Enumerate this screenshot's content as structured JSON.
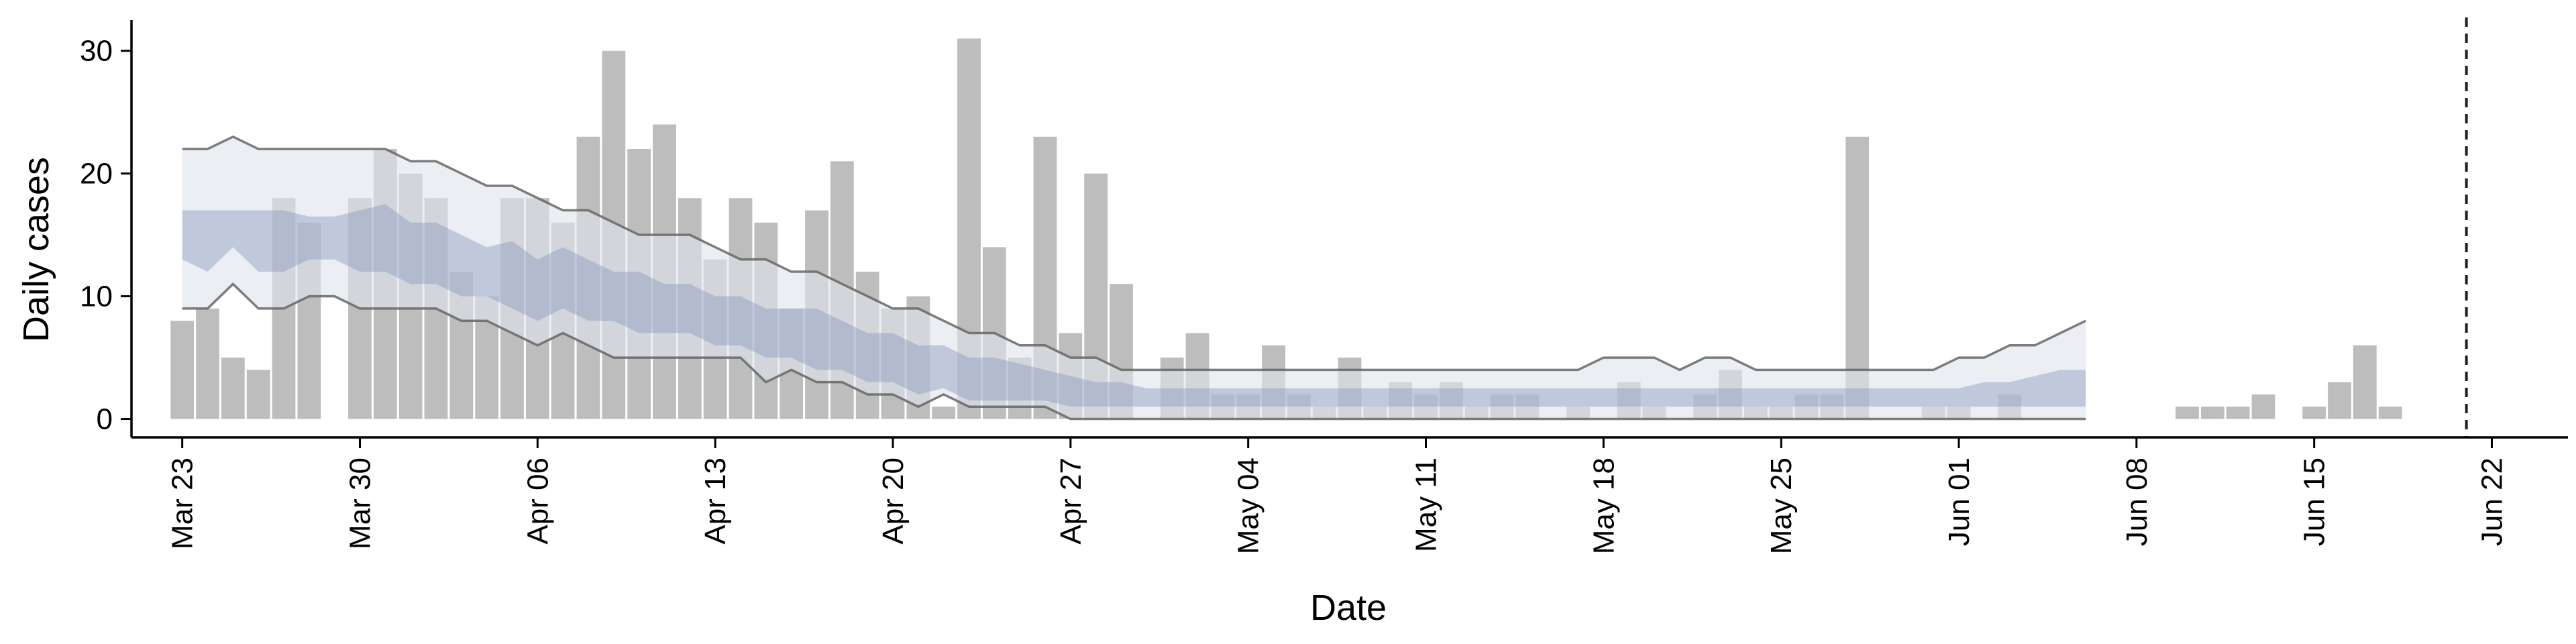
{
  "chart_data": {
    "type": "bar",
    "title": "",
    "xlabel": "Date",
    "ylabel": "Daily cases",
    "ylim": [
      -1.5,
      32.5
    ],
    "yticks": [
      0,
      10,
      20,
      30
    ],
    "xlim": [
      "2020-03-21",
      "2020-06-25"
    ],
    "xticks": [
      {
        "date": "2020-03-23",
        "label": "Mar 23"
      },
      {
        "date": "2020-03-30",
        "label": "Mar 30"
      },
      {
        "date": "2020-04-06",
        "label": "Apr 06"
      },
      {
        "date": "2020-04-13",
        "label": "Apr 13"
      },
      {
        "date": "2020-04-20",
        "label": "Apr 20"
      },
      {
        "date": "2020-04-27",
        "label": "Apr 27"
      },
      {
        "date": "2020-05-04",
        "label": "May 04"
      },
      {
        "date": "2020-05-11",
        "label": "May 11"
      },
      {
        "date": "2020-05-18",
        "label": "May 18"
      },
      {
        "date": "2020-05-25",
        "label": "May 25"
      },
      {
        "date": "2020-06-01",
        "label": "Jun 01"
      },
      {
        "date": "2020-06-08",
        "label": "Jun 08"
      },
      {
        "date": "2020-06-15",
        "label": "Jun 15"
      },
      {
        "date": "2020-06-22",
        "label": "Jun 22"
      }
    ],
    "vline_date": "2020-06-21",
    "bars_start_date": "2020-03-23",
    "bars_daily_cases": [
      8,
      9,
      5,
      4,
      18,
      16,
      0,
      18,
      22,
      20,
      18,
      12,
      10,
      18,
      18,
      16,
      23,
      30,
      22,
      24,
      18,
      13,
      18,
      16,
      9,
      17,
      21,
      12,
      9,
      10,
      1,
      31,
      14,
      5,
      23,
      7,
      20,
      11,
      0,
      5,
      7,
      2,
      2,
      6,
      2,
      1,
      5,
      1,
      3,
      2,
      3,
      1,
      2,
      2,
      0,
      1,
      0,
      3,
      1,
      0,
      2,
      4,
      1,
      1,
      2,
      2,
      23,
      0,
      0,
      1,
      1,
      0,
      2,
      0,
      0,
      0,
      0,
      0,
      0,
      1,
      1,
      1,
      2,
      0,
      1,
      3,
      6,
      1
    ],
    "model_start_date": "2020-03-23",
    "model_end_date": "2020-06-05",
    "outer_upper": [
      22,
      22,
      23,
      22,
      22,
      22,
      22,
      22,
      22,
      21,
      21,
      20,
      19,
      19,
      18,
      17,
      17,
      16,
      15,
      15,
      15,
      14,
      13,
      13,
      12,
      12,
      11,
      10,
      9,
      9,
      8,
      7,
      7,
      6,
      6,
      5,
      5,
      4,
      4,
      4,
      4,
      4,
      4,
      4,
      4,
      4,
      4,
      4,
      4,
      4,
      4,
      4,
      4,
      4,
      4,
      4,
      5,
      5,
      5,
      4,
      5,
      5,
      4,
      4,
      4,
      4,
      4,
      4,
      4,
      4,
      5,
      5,
      6,
      6,
      7,
      8
    ],
    "outer_lower": [
      9,
      9,
      11,
      9,
      9,
      10,
      10,
      9,
      9,
      9,
      9,
      8,
      8,
      7,
      6,
      7,
      6,
      5,
      5,
      5,
      5,
      5,
      5,
      3,
      4,
      3,
      3,
      2,
      2,
      1,
      2,
      1,
      1,
      1,
      1,
      0,
      0,
      0,
      0,
      0,
      0,
      0,
      0,
      0,
      0,
      0,
      0,
      0,
      0,
      0,
      0,
      0,
      0,
      0,
      0,
      0,
      0,
      0,
      0,
      0,
      0,
      0,
      0,
      0,
      0,
      0,
      0,
      0,
      0,
      0,
      0,
      0,
      0,
      0,
      0,
      0
    ],
    "inner_upper": [
      17,
      17,
      17,
      17,
      17,
      16.5,
      16.5,
      17,
      17.5,
      16,
      16,
      15,
      14,
      14.5,
      13,
      14,
      13,
      12,
      12,
      11,
      11,
      10,
      10,
      9,
      9,
      9,
      8,
      7,
      7,
      6,
      6,
      5,
      5,
      4.5,
      4,
      3.5,
      3,
      3,
      2.5,
      2.5,
      2.5,
      2.5,
      2.5,
      2.5,
      2.5,
      2.5,
      2.5,
      2.5,
      2.5,
      2.5,
      2.5,
      2.5,
      2.5,
      2.5,
      2.5,
      2.5,
      2.5,
      2.5,
      2.5,
      2.5,
      2.5,
      2.5,
      2.5,
      2.5,
      2.5,
      2.5,
      2.5,
      2.5,
      2.5,
      2.5,
      2.5,
      3,
      3,
      3.5,
      4,
      4
    ],
    "inner_lower": [
      13,
      12,
      14,
      12,
      12,
      13,
      13,
      12,
      12,
      11,
      11,
      10,
      10,
      9,
      8,
      9,
      8,
      8,
      7,
      7,
      7,
      6,
      6,
      5,
      5,
      4,
      4,
      3,
      3,
      2,
      2.5,
      1.5,
      1.5,
      1.5,
      1.5,
      1,
      1,
      1,
      1,
      1,
      1,
      1,
      1,
      1,
      1,
      1,
      1,
      1,
      1,
      1,
      1,
      1,
      1,
      1,
      1,
      1,
      1,
      1,
      1,
      1,
      1,
      1,
      1,
      1,
      1,
      1,
      1,
      1,
      1,
      1,
      1,
      1,
      1,
      1,
      1,
      1
    ],
    "colors": {
      "bars": "#bdbdbd",
      "outer_band": "#dfe3ec",
      "inner_band": "#8c9bbf",
      "bound_lines": "#666666",
      "vline": "#222222"
    }
  }
}
